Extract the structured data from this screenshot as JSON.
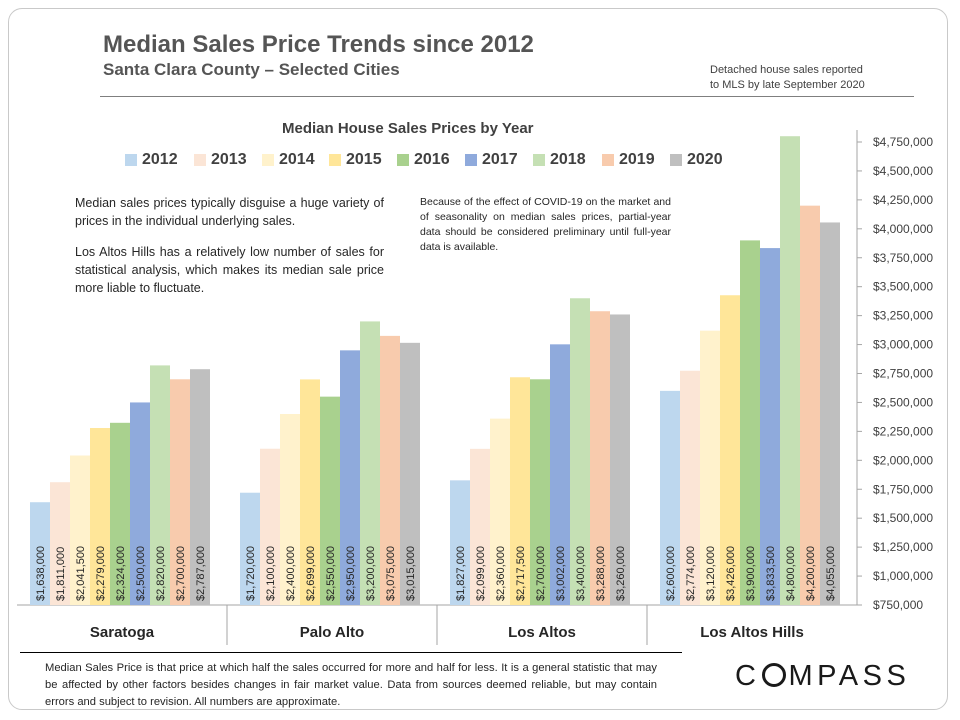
{
  "header": {
    "title": "Median Sales Price Trends since 2012",
    "subtitle": "Santa Clara County – Selected Cities",
    "note_line1": "Detached house sales reported",
    "note_line2": "to MLS by late September 2020"
  },
  "annotations": {
    "left_p1": "Median sales prices typically disguise a huge variety of prices in the individual underlying sales.",
    "left_p2": "Los Altos Hills has a relatively low number of sales for statistical analysis, which makes its median sale price more liable to fluctuate.",
    "right": "Because of the effect of COVID-19 on the market and of seasonality on median sales prices, partial-year data should be considered preliminary until full-year data is available."
  },
  "footer": {
    "disclaimer": "Median Sales Price is that price at which half the sales occurred for more and half for less. It is a general statistic that may be affected by other factors besides changes in fair market value. Data from sources deemed reliable, but may contain errors and subject to revision.  All numbers are approximate.",
    "logo_parts": [
      "C",
      "MPASS"
    ]
  },
  "chart_data": {
    "type": "bar",
    "title": "Median House Sales Prices by Year",
    "categories": [
      "Saratoga",
      "Palo Alto",
      "Los Altos",
      "Los Altos Hills"
    ],
    "series": [
      {
        "name": "2012",
        "color": "#bdd7ee",
        "values": [
          1638000,
          1720000,
          1827000,
          2600000
        ],
        "labels": [
          "$1,638,000",
          "$1,720,000",
          "$1,827,000",
          "$2,600,000"
        ]
      },
      {
        "name": "2013",
        "color": "#fbe5d6",
        "values": [
          1811000,
          2100000,
          2099000,
          2774000
        ],
        "labels": [
          "$1,811,000",
          "$2,100,000",
          "$2,099,000",
          "$2,774,000"
        ]
      },
      {
        "name": "2014",
        "color": "#fff2cc",
        "values": [
          2041500,
          2400000,
          2360000,
          3120000
        ],
        "labels": [
          "$2,041,500",
          "$2,400,000",
          "$2,360,000",
          "$3,120,000"
        ]
      },
      {
        "name": "2015",
        "color": "#ffe699",
        "values": [
          2279000,
          2699000,
          2717500,
          3426000
        ],
        "labels": [
          "$2,279,000",
          "$2,699,000",
          "$2,717,500",
          "$3,426,000"
        ]
      },
      {
        "name": "2016",
        "color": "#a9d18e",
        "values": [
          2324000,
          2550000,
          2700000,
          3900000
        ],
        "labels": [
          "$2,324,000",
          "$2,550,000",
          "$2,700,000",
          "$3,900,000"
        ]
      },
      {
        "name": "2017",
        "color": "#8faadc",
        "values": [
          2500000,
          2950000,
          3002000,
          3833500
        ],
        "labels": [
          "$2,500,000",
          "$2,950,000",
          "$3,002,000",
          "$3,833,500"
        ]
      },
      {
        "name": "2018",
        "color": "#c5e0b4",
        "values": [
          2820000,
          3200000,
          3400000,
          4800000
        ],
        "labels": [
          "$2,820,000",
          "$3,200,000",
          "$3,400,000",
          "$4,800,000"
        ]
      },
      {
        "name": "2019",
        "color": "#f8cbad",
        "values": [
          2700000,
          3075000,
          3288000,
          4200000
        ],
        "labels": [
          "$2,700,000",
          "$3,075,000",
          "$3,288,000",
          "$4,200,000"
        ]
      },
      {
        "name": "2020",
        "color": "#bfbfbf",
        "values": [
          2787000,
          3015000,
          3260000,
          4055000
        ],
        "labels": [
          "$2,787,000",
          "$3,015,000",
          "$3,260,000",
          "$4,055,000"
        ]
      }
    ],
    "y_ticks": [
      750000,
      1000000,
      1250000,
      1500000,
      1750000,
      2000000,
      2250000,
      2500000,
      2750000,
      3000000,
      3250000,
      3500000,
      3750000,
      4000000,
      4250000,
      4500000,
      4750000
    ],
    "y_tick_labels": [
      "$750,000",
      "$1,000,000",
      "$1,250,000",
      "$1,500,000",
      "$1,750,000",
      "$2,000,000",
      "$2,250,000",
      "$2,500,000",
      "$2,750,000",
      "$3,000,000",
      "$3,250,000",
      "$3,500,000",
      "$3,750,000",
      "$4,000,000",
      "$4,250,000",
      "$4,500,000",
      "$4,750,000"
    ],
    "ylim": [
      750000,
      4800000
    ],
    "y_axis_position": "right",
    "grid": false,
    "legend_position": "top"
  }
}
